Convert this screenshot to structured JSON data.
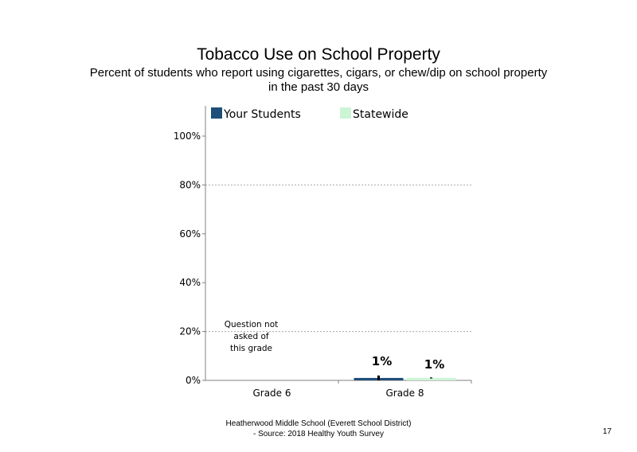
{
  "page": {
    "title": "Tobacco Use on School Property",
    "subtitle_line1": "Percent of students who report using cigarettes, cigars, or chew/dip on school property",
    "subtitle_line2": "in the past 30 days",
    "footer_line1": "Heatherwood Middle School (Everett School District)",
    "footer_line2": "- Source: 2018 Healthy Youth Survey",
    "page_number": "17"
  },
  "chart_data": {
    "type": "bar",
    "categories": [
      "Grade 6",
      "Grade 8"
    ],
    "series": [
      {
        "name": "Your Students",
        "color": "#1f4e79",
        "values": [
          null,
          1
        ],
        "labels": [
          "",
          "1%"
        ],
        "error": [
          null,
          [
            0,
            2
          ]
        ]
      },
      {
        "name": "Statewide",
        "color": "#ccf5d6",
        "values": [
          null,
          1
        ],
        "labels": [
          "",
          "1%"
        ],
        "error": [
          null,
          [
            0.8,
            1.2
          ]
        ]
      }
    ],
    "ylim": [
      0,
      100
    ],
    "yticks": [
      0,
      20,
      40,
      60,
      80,
      100
    ],
    "ytick_labels": [
      "0%",
      "20%",
      "40%",
      "60%",
      "80%",
      "100%"
    ],
    "gridlines": [
      20,
      80
    ],
    "legend_position": "top",
    "annotations": [
      {
        "category": "Grade 6",
        "lines": [
          "Question not",
          "asked of",
          "this grade"
        ]
      }
    ]
  }
}
